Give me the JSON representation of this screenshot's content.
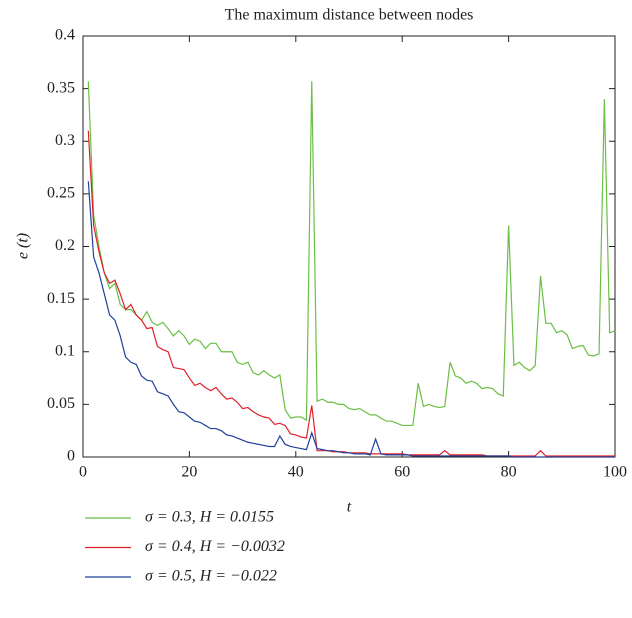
{
  "chart_data": {
    "type": "line",
    "title": "The maximum distance between nodes",
    "x_label": "t",
    "y_label": "e (t)",
    "x": [
      1,
      2,
      3,
      4,
      5,
      6,
      7,
      8,
      9,
      10,
      11,
      12,
      13,
      14,
      15,
      16,
      17,
      18,
      19,
      20,
      21,
      22,
      23,
      24,
      25,
      26,
      27,
      28,
      29,
      30,
      31,
      32,
      33,
      34,
      35,
      36,
      37,
      38,
      39,
      40,
      41,
      42,
      43,
      44,
      45,
      46,
      47,
      48,
      49,
      50,
      51,
      52,
      53,
      54,
      55,
      56,
      57,
      58,
      59,
      60,
      61,
      62,
      63,
      64,
      65,
      66,
      67,
      68,
      69,
      70,
      71,
      72,
      73,
      74,
      75,
      76,
      77,
      78,
      79,
      80,
      81,
      82,
      83,
      84,
      85,
      86,
      87,
      88,
      89,
      90,
      91,
      92,
      93,
      94,
      95,
      96,
      97,
      98,
      99,
      100
    ],
    "series": [
      {
        "name": "σ = 0.3, H = 0.0155",
        "color": "#6abf45",
        "values": [
          0.357,
          0.23,
          0.2,
          0.175,
          0.16,
          0.165,
          0.145,
          0.14,
          0.14,
          0.135,
          0.13,
          0.138,
          0.128,
          0.125,
          0.128,
          0.122,
          0.115,
          0.12,
          0.115,
          0.107,
          0.112,
          0.11,
          0.103,
          0.108,
          0.108,
          0.1,
          0.1,
          0.1,
          0.09,
          0.088,
          0.09,
          0.08,
          0.078,
          0.082,
          0.078,
          0.075,
          0.078,
          0.045,
          0.037,
          0.038,
          0.038,
          0.035,
          0.357,
          0.053,
          0.055,
          0.052,
          0.052,
          0.05,
          0.05,
          0.046,
          0.045,
          0.046,
          0.043,
          0.04,
          0.04,
          0.037,
          0.034,
          0.034,
          0.032,
          0.03,
          0.03,
          0.03,
          0.07,
          0.048,
          0.05,
          0.048,
          0.047,
          0.048,
          0.09,
          0.077,
          0.075,
          0.07,
          0.072,
          0.07,
          0.065,
          0.066,
          0.065,
          0.06,
          0.058,
          0.22,
          0.087,
          0.09,
          0.085,
          0.082,
          0.087,
          0.172,
          0.127,
          0.127,
          0.118,
          0.12,
          0.116,
          0.103,
          0.105,
          0.106,
          0.097,
          0.096,
          0.098,
          0.34,
          0.118,
          0.12
        ]
      },
      {
        "name": "σ = 0.4, H = −0.0032",
        "color": "#e0202a",
        "values": [
          0.31,
          0.22,
          0.195,
          0.175,
          0.165,
          0.168,
          0.155,
          0.14,
          0.145,
          0.135,
          0.13,
          0.122,
          0.123,
          0.105,
          0.102,
          0.1,
          0.085,
          0.084,
          0.083,
          0.075,
          0.068,
          0.07,
          0.066,
          0.063,
          0.066,
          0.06,
          0.055,
          0.056,
          0.052,
          0.046,
          0.047,
          0.043,
          0.04,
          0.038,
          0.037,
          0.031,
          0.032,
          0.03,
          0.022,
          0.021,
          0.019,
          0.018,
          0.049,
          0.006,
          0.006,
          0.006,
          0.005,
          0.005,
          0.005,
          0.004,
          0.004,
          0.004,
          0.004,
          0.003,
          0.003,
          0.003,
          0.003,
          0.003,
          0.003,
          0.003,
          0.002,
          0.002,
          0.002,
          0.002,
          0.002,
          0.002,
          0.002,
          0.006,
          0.002,
          0.002,
          0.002,
          0.002,
          0.002,
          0.002,
          0.002,
          0.001,
          0.001,
          0.001,
          0.001,
          0.001,
          0.001,
          0.001,
          0.001,
          0.001,
          0.001,
          0.006,
          0.001,
          0.001,
          0.001,
          0.001,
          0.001,
          0.001,
          0.001,
          0.001,
          0.001,
          0.001,
          0.001,
          0.001,
          0.001,
          0.001
        ]
      },
      {
        "name": "σ = 0.5, H = −0.022",
        "color": "#22409a",
        "values": [
          0.262,
          0.19,
          0.175,
          0.155,
          0.135,
          0.13,
          0.115,
          0.095,
          0.09,
          0.088,
          0.077,
          0.073,
          0.072,
          0.062,
          0.06,
          0.058,
          0.05,
          0.043,
          0.042,
          0.038,
          0.034,
          0.033,
          0.03,
          0.027,
          0.027,
          0.025,
          0.021,
          0.02,
          0.018,
          0.016,
          0.014,
          0.013,
          0.012,
          0.011,
          0.01,
          0.01,
          0.02,
          0.012,
          0.01,
          0.009,
          0.008,
          0.007,
          0.023,
          0.008,
          0.007,
          0.006,
          0.006,
          0.005,
          0.004,
          0.004,
          0.003,
          0.003,
          0.003,
          0.002,
          0.017,
          0.003,
          0.002,
          0.002,
          0.002,
          0.002,
          0.002,
          0.001,
          0.001,
          0.001,
          0.001,
          0.001,
          0.001,
          0.001,
          0.001,
          0.001,
          0.001,
          0.001,
          0.001,
          0.001,
          0.001,
          0.001,
          0.001,
          0.001,
          0.001,
          0.001,
          0,
          0,
          0,
          0,
          0,
          0,
          0,
          0,
          0,
          0,
          0,
          0,
          0,
          0,
          0,
          0,
          0,
          0,
          0,
          0
        ]
      }
    ],
    "xlim": [
      0,
      100
    ],
    "ylim": [
      0,
      0.4
    ],
    "xticks": [
      0,
      20,
      40,
      60,
      80,
      100
    ],
    "yticks": [
      0,
      0.05,
      0.1,
      0.15,
      0.2,
      0.25,
      0.3,
      0.35,
      0.4
    ]
  }
}
